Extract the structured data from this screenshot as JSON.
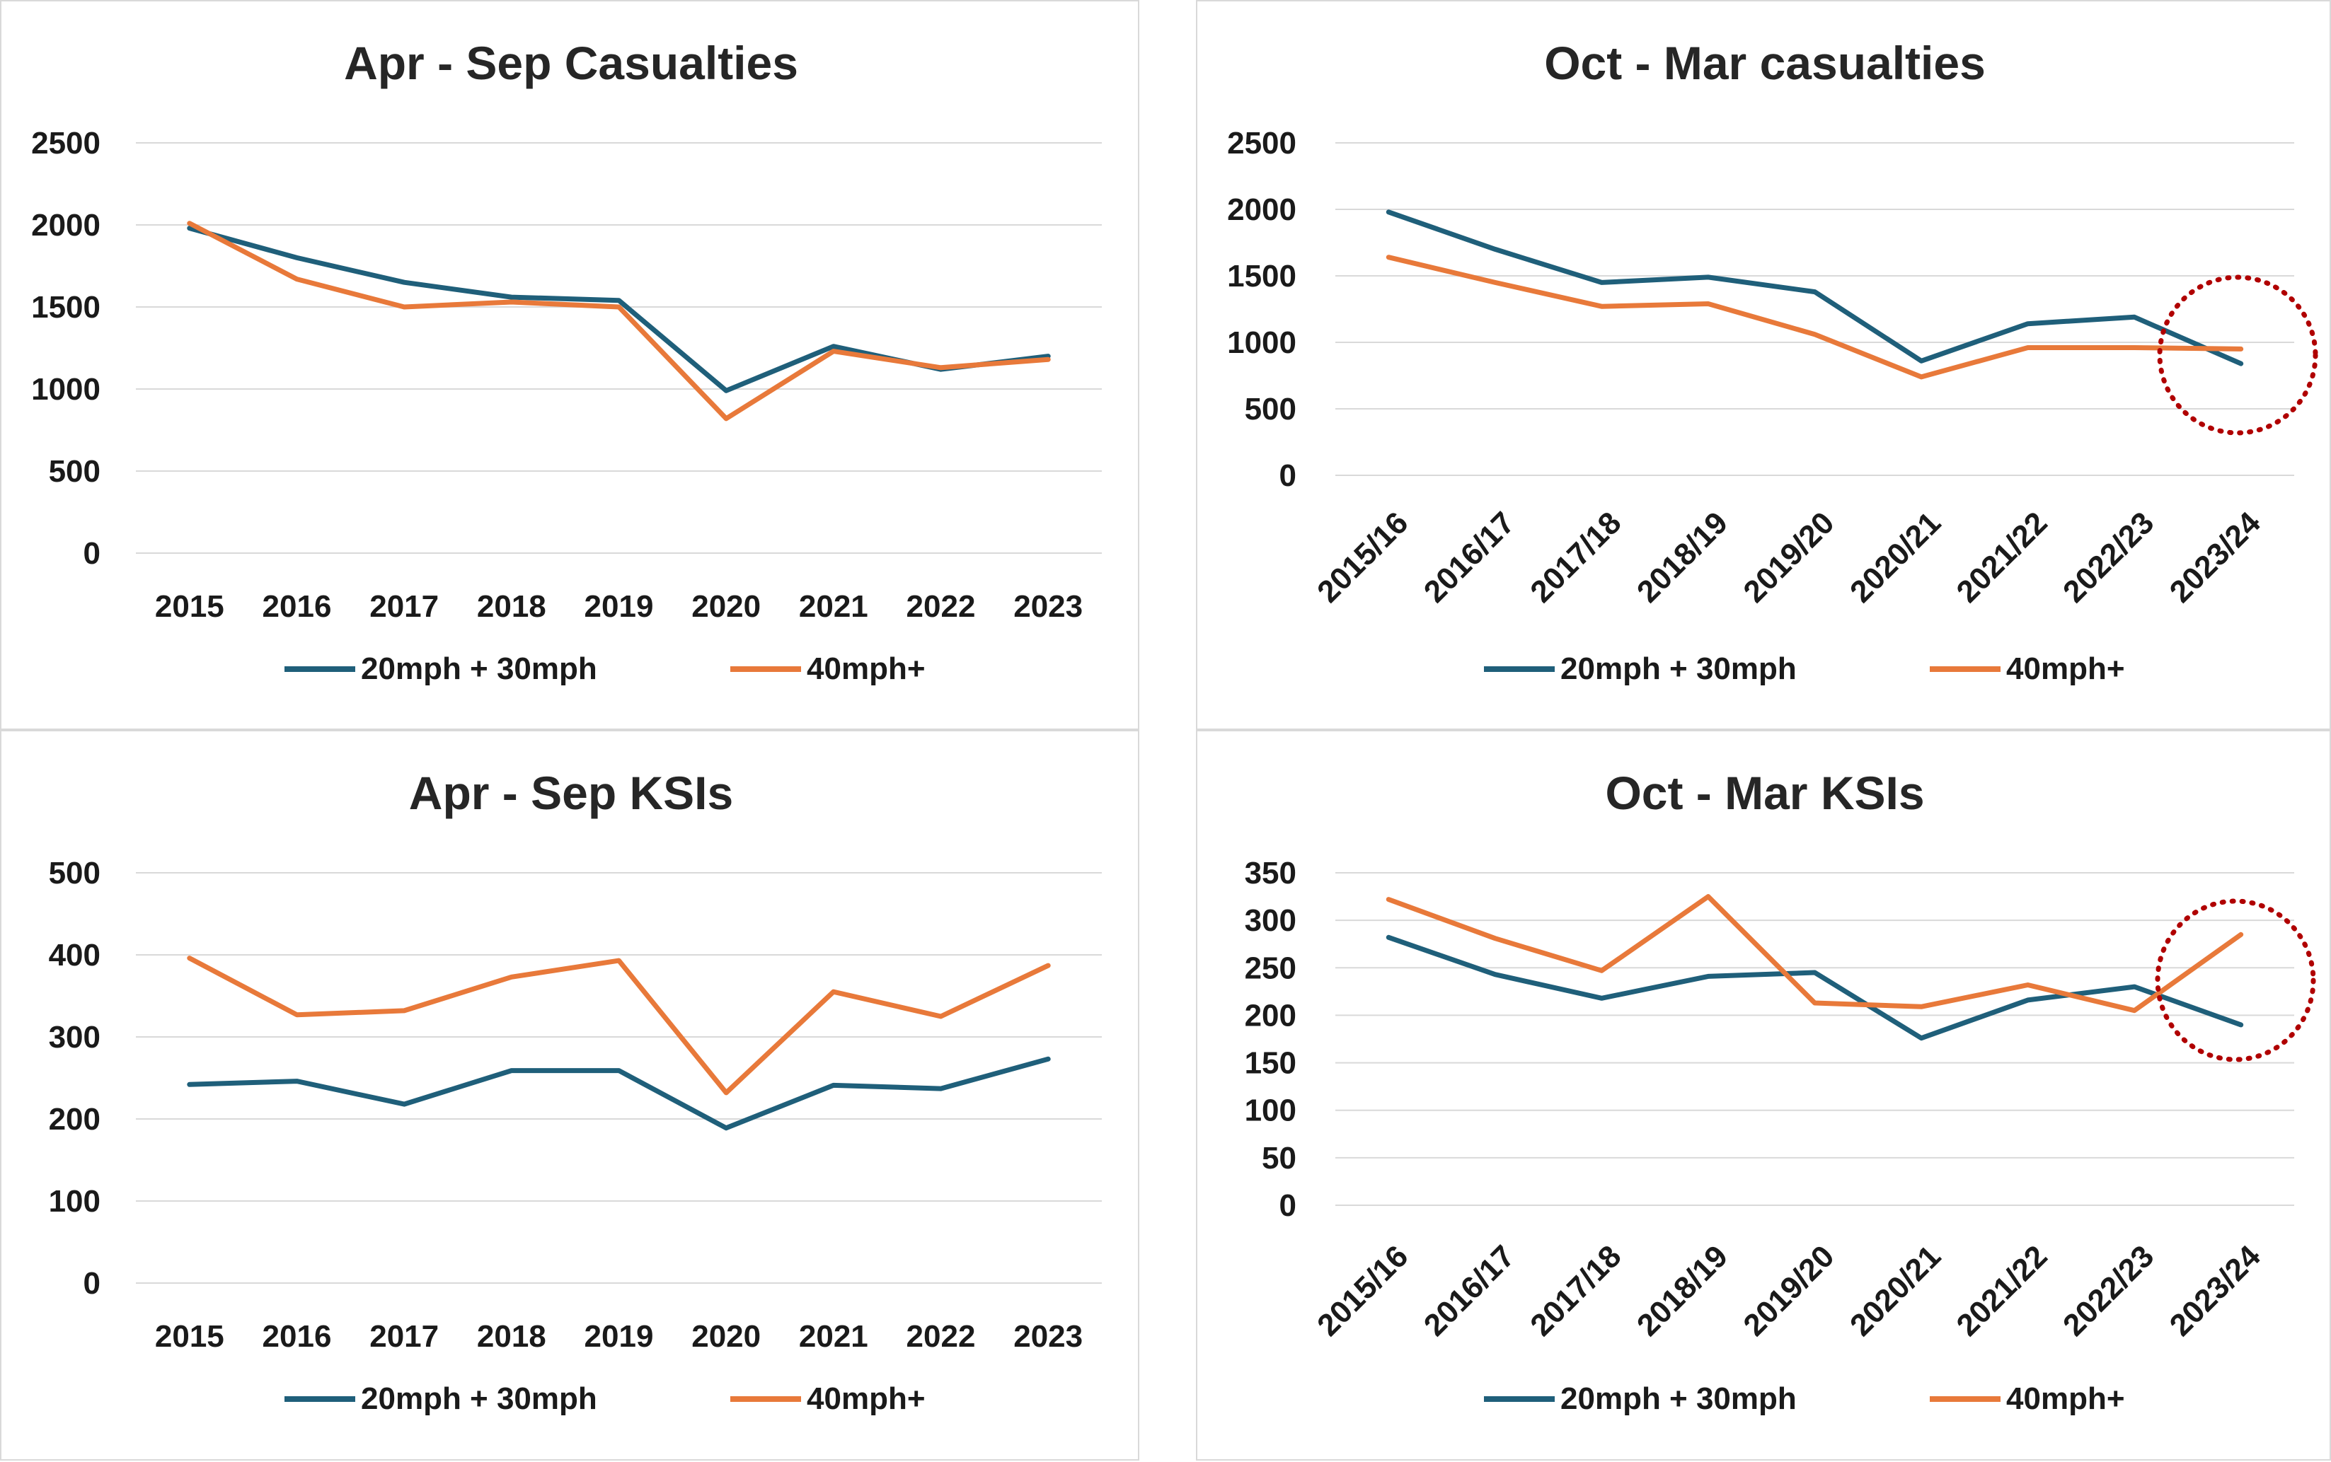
{
  "colors": {
    "s1": "#1f5f7a",
    "s2": "#e8793a",
    "grid": "#d9d9d9",
    "highlight": "#b00000"
  },
  "chart_data": [
    {
      "type": "line",
      "title": "Apr - Sep Casualties",
      "categories": [
        "2015",
        "2016",
        "2017",
        "2018",
        "2019",
        "2020",
        "2021",
        "2022",
        "2023"
      ],
      "series": [
        {
          "name": "20mph + 30mph",
          "values": [
            1980,
            1800,
            1650,
            1560,
            1540,
            990,
            1260,
            1120,
            1200
          ]
        },
        {
          "name": "40mph+",
          "values": [
            2010,
            1670,
            1500,
            1530,
            1500,
            820,
            1230,
            1130,
            1180
          ]
        }
      ],
      "yticks": [
        "0",
        "500",
        "1000",
        "1500",
        "2000",
        "2500"
      ],
      "ylim": [
        0,
        2500
      ],
      "xlabel": "",
      "ylabel": "",
      "grid": true,
      "legend": "bottom",
      "rotated_labels": false,
      "highlight": false
    },
    {
      "type": "line",
      "title": "Oct - Mar casualties",
      "categories": [
        "2015/16",
        "2016/17",
        "2017/18",
        "2018/19",
        "2019/20",
        "2020/21",
        "2021/22",
        "2022/23",
        "2023/24"
      ],
      "series": [
        {
          "name": "20mph + 30mph",
          "values": [
            1980,
            1700,
            1450,
            1490,
            1380,
            860,
            1140,
            1190,
            840
          ]
        },
        {
          "name": "40mph+",
          "values": [
            1640,
            1450,
            1270,
            1290,
            1060,
            740,
            960,
            960,
            950
          ]
        }
      ],
      "yticks": [
        "0",
        "500",
        "1000",
        "1500",
        "2000",
        "2500"
      ],
      "ylim": [
        0,
        2500
      ],
      "xlabel": "",
      "ylabel": "",
      "grid": true,
      "legend": "bottom",
      "rotated_labels": true,
      "highlight": true
    },
    {
      "type": "line",
      "title": "Apr - Sep KSIs",
      "categories": [
        "2015",
        "2016",
        "2017",
        "2018",
        "2019",
        "2020",
        "2021",
        "2022",
        "2023"
      ],
      "series": [
        {
          "name": "20mph + 30mph",
          "values": [
            242,
            246,
            218,
            259,
            259,
            189,
            241,
            237,
            273
          ]
        },
        {
          "name": "40mph+",
          "values": [
            396,
            327,
            332,
            373,
            393,
            232,
            355,
            325,
            387
          ]
        }
      ],
      "yticks": [
        "0",
        "100",
        "200",
        "300",
        "400",
        "500"
      ],
      "ylim": [
        0,
        500
      ],
      "xlabel": "",
      "ylabel": "",
      "grid": true,
      "legend": "bottom",
      "rotated_labels": false,
      "highlight": false
    },
    {
      "type": "line",
      "title": "Oct - Mar KSIs",
      "categories": [
        "2015/16",
        "2016/17",
        "2017/18",
        "2018/19",
        "2019/20",
        "2020/21",
        "2021/22",
        "2022/23",
        "2023/24"
      ],
      "series": [
        {
          "name": "20mph + 30mph",
          "values": [
            282,
            243,
            218,
            241,
            245,
            176,
            216,
            230,
            190
          ]
        },
        {
          "name": "40mph+",
          "values": [
            322,
            281,
            247,
            325,
            213,
            209,
            232,
            205,
            285
          ]
        }
      ],
      "yticks": [
        "0",
        "50",
        "100",
        "150",
        "200",
        "250",
        "300",
        "350"
      ],
      "ylim": [
        0,
        350
      ],
      "xlabel": "",
      "ylabel": "",
      "grid": true,
      "legend": "bottom",
      "rotated_labels": true,
      "highlight": true
    }
  ]
}
